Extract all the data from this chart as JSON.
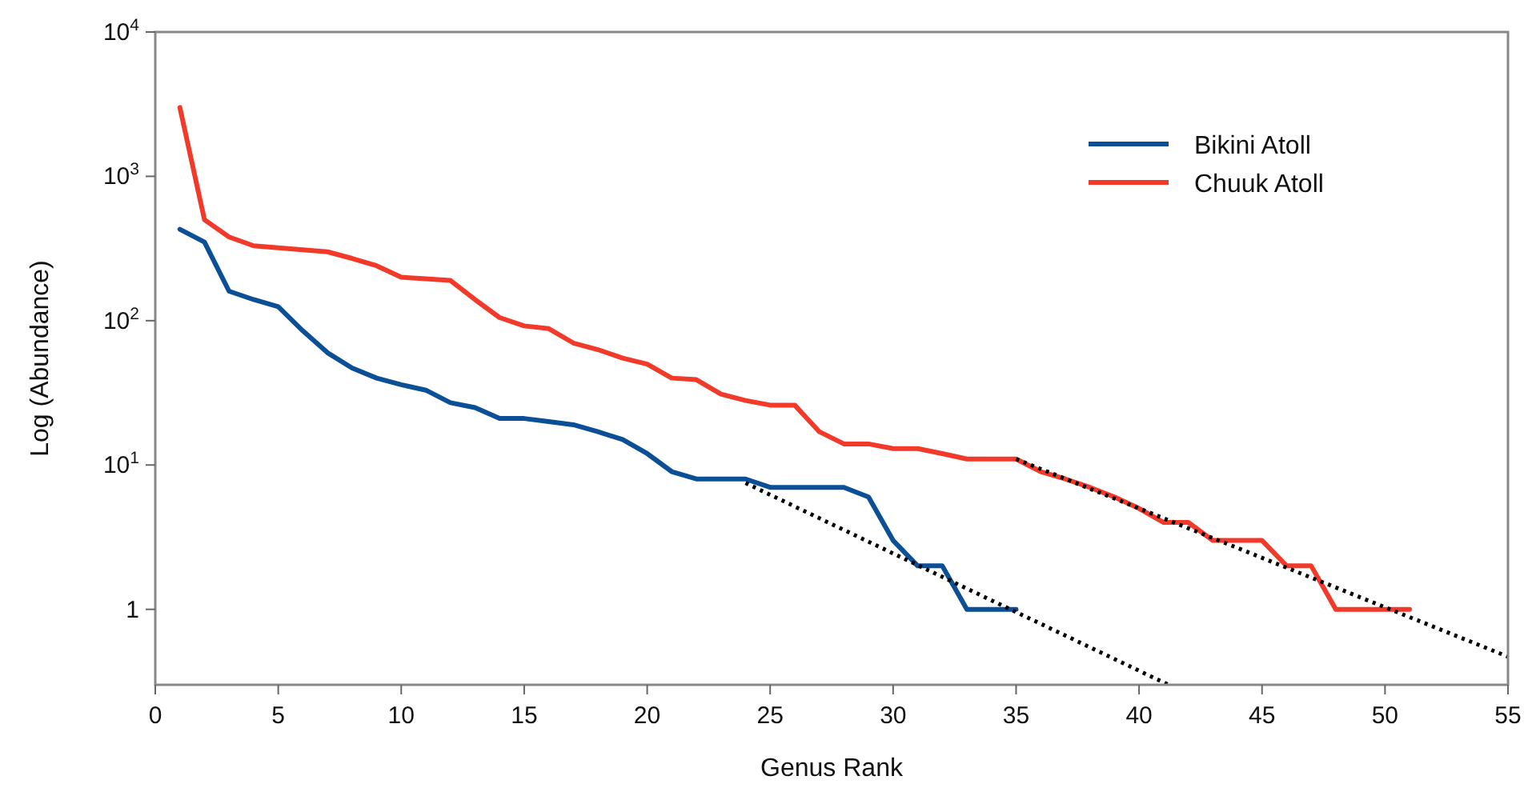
{
  "chart_data": {
    "type": "line",
    "xlabel": "Genus Rank",
    "ylabel": "Log (Abundance)",
    "log": "y",
    "xlim": [
      0,
      55
    ],
    "xticks": [
      0,
      5,
      10,
      15,
      20,
      25,
      30,
      35,
      40,
      45,
      50,
      55
    ],
    "ylim": [
      0.3,
      10000
    ],
    "yticks": [
      {
        "value": 1,
        "label": "1"
      },
      {
        "value": 10,
        "label": "10$^{1}$"
      },
      {
        "value": 100,
        "label": "10$^{2}$"
      },
      {
        "value": 1000,
        "label": "10$^{3}$"
      },
      {
        "value": 10000,
        "label": "10$^{4}$"
      }
    ],
    "grid": false,
    "legend": "top right",
    "series": [
      {
        "name": "Bikini Atoll",
        "color": "#0b4f96",
        "x": [
          1,
          2,
          3,
          4,
          5,
          6,
          7,
          8,
          9,
          10,
          11,
          12,
          13,
          14,
          15,
          16,
          17,
          18,
          19,
          20,
          21,
          22,
          23,
          24,
          25,
          26,
          27,
          28,
          29,
          30,
          31,
          32,
          33,
          34,
          35
        ],
        "values": [
          430,
          350,
          160,
          140,
          125,
          85,
          60,
          47,
          40,
          36,
          33,
          27,
          25,
          21,
          21,
          20,
          19,
          17,
          15,
          12,
          9,
          8,
          8,
          8,
          7,
          7,
          7,
          7,
          6,
          3,
          2,
          2,
          1,
          1,
          1
        ]
      },
      {
        "name": "Chuuk Atoll",
        "color": "#f23a2a",
        "x": [
          1,
          2,
          3,
          4,
          5,
          6,
          7,
          8,
          9,
          10,
          11,
          12,
          13,
          14,
          15,
          16,
          17,
          18,
          19,
          20,
          21,
          22,
          23,
          24,
          25,
          26,
          27,
          28,
          29,
          30,
          31,
          32,
          33,
          34,
          35,
          36,
          37,
          38,
          39,
          40,
          41,
          42,
          43,
          44,
          45,
          46,
          47,
          48,
          49,
          50,
          51
        ],
        "values": [
          3000,
          500,
          380,
          330,
          320,
          310,
          300,
          270,
          240,
          200,
          195,
          190,
          140,
          105,
          92,
          88,
          70,
          63,
          55,
          50,
          40,
          39,
          31,
          28,
          26,
          26,
          17,
          14,
          14,
          13,
          13,
          12,
          11,
          11,
          11,
          9,
          8,
          7,
          6,
          5,
          4,
          4,
          3,
          3,
          3,
          2,
          2,
          1,
          1,
          1,
          1
        ]
      },
      {
        "type": "line",
        "color": "#000000",
        "line_style": "dotted",
        "x": [
          24,
          41.2
        ],
        "values": [
          7.5,
          0.3
        ]
      },
      {
        "type": "line",
        "color": "#000000",
        "line_style": "dotted",
        "x": [
          35,
          55
        ],
        "values": [
          11,
          0.47
        ]
      }
    ]
  }
}
